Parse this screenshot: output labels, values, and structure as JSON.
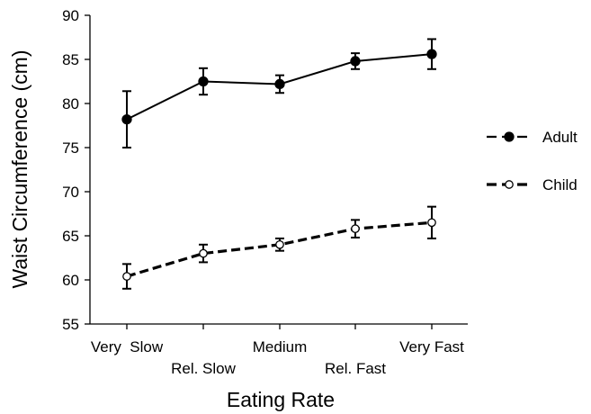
{
  "chart_data": {
    "type": "line",
    "xlabel": "Eating Rate",
    "ylabel": "Waist Circumference (cm)",
    "categories": [
      "Very  Slow",
      "Rel. Slow",
      "Medium",
      "Rel. Fast",
      "Very Fast"
    ],
    "ylim": [
      55,
      90
    ],
    "yticks": [
      55,
      60,
      65,
      70,
      75,
      80,
      85,
      90
    ],
    "grid": false,
    "legend_position": "right",
    "series": [
      {
        "name": "Adult",
        "marker": "filled-circle",
        "line_style": "solid",
        "color": "#000000",
        "values": [
          78.2,
          82.5,
          82.2,
          84.8,
          85.6
        ],
        "error": [
          3.2,
          1.5,
          1.0,
          0.9,
          1.7
        ]
      },
      {
        "name": "Child",
        "marker": "open-circle",
        "line_style": "dashed",
        "color": "#000000",
        "values": [
          60.4,
          63.0,
          64.0,
          65.8,
          66.5
        ],
        "error": [
          1.4,
          1.0,
          0.7,
          1.0,
          1.8
        ]
      }
    ]
  }
}
